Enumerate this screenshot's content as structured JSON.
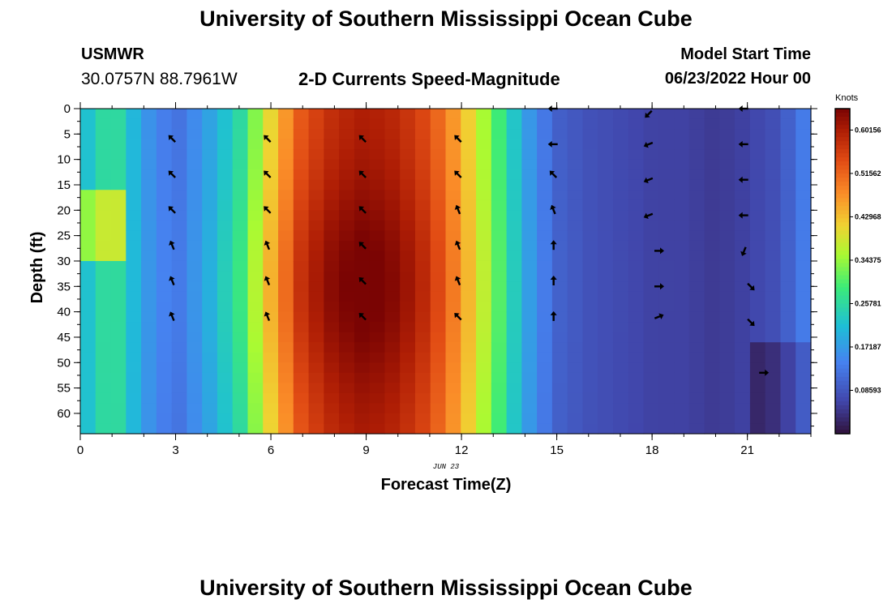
{
  "header": {
    "title": "University of Southern Mississippi Ocean Cube",
    "station": "USMWR",
    "coords": "30.0757N  88.7961W",
    "subtitle": "2-D Currents Speed-Magnitude",
    "model_start_label": "Model Start Time",
    "model_start_value": "06/23/2022 Hour 00",
    "repeat_title": "University of Southern Mississippi Ocean Cube"
  },
  "chart_data": {
    "type": "heatmap",
    "title": "2-D Currents Speed-Magnitude",
    "xlabel": "Forecast Time(Z)",
    "ylabel": "Depth (ft)",
    "date_label": "JUN 23",
    "colorbar_label": "Knots",
    "xlim": [
      0,
      23
    ],
    "ylim": [
      0,
      64
    ],
    "x_ticks": [
      0,
      3,
      6,
      9,
      12,
      15,
      18,
      21
    ],
    "y_ticks": [
      0,
      5,
      10,
      15,
      20,
      25,
      30,
      35,
      40,
      45,
      50,
      55,
      60
    ],
    "colorbar_range": [
      0.0,
      0.644
    ],
    "colorbar_ticks": [
      "0.60156",
      "0.51562",
      "0.42968",
      "0.34375",
      "0.25781",
      "0.17187",
      "0.08593"
    ],
    "colorbar_tick_values": [
      0.60156,
      0.51562,
      0.42968,
      0.34375,
      0.25781,
      0.17187,
      0.08593
    ],
    "speed_profile_hourly": [
      0.2,
      0.28,
      0.17,
      0.12,
      0.18,
      0.26,
      0.42,
      0.55,
      0.6,
      0.62,
      0.6,
      0.55,
      0.45,
      0.32,
      0.18,
      0.1,
      0.08,
      0.07,
      0.06,
      0.06,
      0.05,
      0.06,
      0.08,
      0.15
    ],
    "vectors": [
      {
        "t": 2.9,
        "depth": 6,
        "dir": "NW"
      },
      {
        "t": 2.9,
        "depth": 13,
        "dir": "NW"
      },
      {
        "t": 2.9,
        "depth": 20,
        "dir": "NW"
      },
      {
        "t": 2.9,
        "depth": 27,
        "dir": "NNW"
      },
      {
        "t": 2.9,
        "depth": 34,
        "dir": "NNW"
      },
      {
        "t": 2.9,
        "depth": 41,
        "dir": "NNW"
      },
      {
        "t": 5.9,
        "depth": 6,
        "dir": "NW"
      },
      {
        "t": 5.9,
        "depth": 13,
        "dir": "NW"
      },
      {
        "t": 5.9,
        "depth": 20,
        "dir": "NW"
      },
      {
        "t": 5.9,
        "depth": 27,
        "dir": "NNW"
      },
      {
        "t": 5.9,
        "depth": 34,
        "dir": "NNW"
      },
      {
        "t": 5.9,
        "depth": 41,
        "dir": "NNW"
      },
      {
        "t": 8.9,
        "depth": 6,
        "dir": "NW"
      },
      {
        "t": 8.9,
        "depth": 13,
        "dir": "NW"
      },
      {
        "t": 8.9,
        "depth": 20,
        "dir": "NW"
      },
      {
        "t": 8.9,
        "depth": 27,
        "dir": "NW"
      },
      {
        "t": 8.9,
        "depth": 34,
        "dir": "NW"
      },
      {
        "t": 8.9,
        "depth": 41,
        "dir": "NW"
      },
      {
        "t": 11.9,
        "depth": 6,
        "dir": "NW"
      },
      {
        "t": 11.9,
        "depth": 13,
        "dir": "NW"
      },
      {
        "t": 11.9,
        "depth": 20,
        "dir": "NNW"
      },
      {
        "t": 11.9,
        "depth": 27,
        "dir": "NNW"
      },
      {
        "t": 11.9,
        "depth": 34,
        "dir": "NNW"
      },
      {
        "t": 11.9,
        "depth": 41,
        "dir": "NW"
      },
      {
        "t": 14.9,
        "depth": 0,
        "dir": "W"
      },
      {
        "t": 14.9,
        "depth": 7,
        "dir": "W"
      },
      {
        "t": 14.9,
        "depth": 13,
        "dir": "NW"
      },
      {
        "t": 14.9,
        "depth": 20,
        "dir": "NNW"
      },
      {
        "t": 14.9,
        "depth": 27,
        "dir": "N"
      },
      {
        "t": 14.9,
        "depth": 34,
        "dir": "N"
      },
      {
        "t": 14.9,
        "depth": 41,
        "dir": "N"
      },
      {
        "t": 17.9,
        "depth": 1,
        "dir": "SW"
      },
      {
        "t": 17.9,
        "depth": 7,
        "dir": "WSW"
      },
      {
        "t": 17.9,
        "depth": 14,
        "dir": "WSW"
      },
      {
        "t": 17.9,
        "depth": 21,
        "dir": "WSW"
      },
      {
        "t": 18.2,
        "depth": 28,
        "dir": "E"
      },
      {
        "t": 18.2,
        "depth": 35,
        "dir": "E"
      },
      {
        "t": 18.2,
        "depth": 41,
        "dir": "ENE"
      },
      {
        "t": 20.9,
        "depth": 0,
        "dir": "W"
      },
      {
        "t": 20.9,
        "depth": 7,
        "dir": "W"
      },
      {
        "t": 20.9,
        "depth": 14,
        "dir": "W"
      },
      {
        "t": 20.9,
        "depth": 21,
        "dir": "W"
      },
      {
        "t": 20.9,
        "depth": 28,
        "dir": "SSW"
      },
      {
        "t": 21.1,
        "depth": 35,
        "dir": "SE"
      },
      {
        "t": 21.1,
        "depth": 42,
        "dir": "SE"
      },
      {
        "t": 21.5,
        "depth": 52,
        "dir": "E"
      }
    ]
  },
  "colors": {
    "text": "#000000",
    "background": "#ffffff",
    "axis": "#000000",
    "arrow": "#000000"
  }
}
